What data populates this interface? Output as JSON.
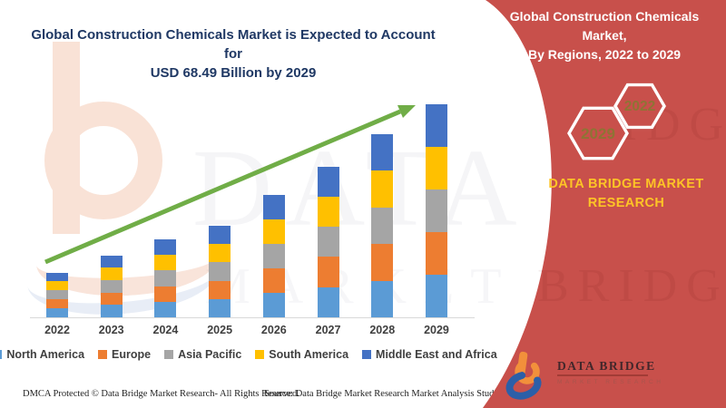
{
  "left_title": {
    "line1": "Global Construction Chemicals Market is Expected to Account for",
    "line2": "USD 68.49 Billion by 2029"
  },
  "chart_data": {
    "type": "bar",
    "stacked": true,
    "title": "Global Construction Chemicals Market is Expected to Account for USD 68.49 Billion by 2029",
    "unit": "USD Billion",
    "categories": [
      "2022",
      "2023",
      "2024",
      "2025",
      "2026",
      "2027",
      "2028",
      "2029"
    ],
    "series": [
      {
        "name": "North America",
        "color": "#5B9BD5",
        "values": [
          2.9,
          4.0,
          5.0,
          5.9,
          7.9,
          9.7,
          11.8,
          13.7
        ]
      },
      {
        "name": "Europe",
        "color": "#ED7D31",
        "values": [
          2.9,
          4.0,
          5.0,
          5.9,
          7.9,
          9.7,
          11.8,
          13.7
        ]
      },
      {
        "name": "Asia Pacific",
        "color": "#A5A5A5",
        "values": [
          2.9,
          4.0,
          5.0,
          5.9,
          7.9,
          9.7,
          11.8,
          13.7
        ]
      },
      {
        "name": "South America",
        "color": "#FFC000",
        "values": [
          2.9,
          4.0,
          5.0,
          5.9,
          7.9,
          9.7,
          11.8,
          13.7
        ]
      },
      {
        "name": "Middle East and Africa",
        "color": "#4472C4",
        "values": [
          2.9,
          4.0,
          5.0,
          5.9,
          7.9,
          9.7,
          11.8,
          13.7
        ]
      }
    ],
    "totals": [
      14.6,
      19.8,
      24.8,
      29.7,
      39.3,
      48.7,
      58.9,
      68.49
    ],
    "ylim": [
      0,
      70
    ],
    "gridlines": false,
    "axis_labels_shown": false,
    "legend_position": "bottom",
    "annotations": [
      "upward green trend arrow from 2022 to 2029"
    ]
  },
  "right_panel": {
    "title_line1": "Global Construction Chemicals Market,",
    "title_line2": "By Regions, 2022 to 2029",
    "hexagons": [
      {
        "label": "2029"
      },
      {
        "label": "2022"
      }
    ],
    "brand_line1": "DATA BRIDGE MARKET",
    "brand_line2": "RESEARCH",
    "panel_red": "#C8504B",
    "brand_yellow": "#FDC426",
    "hexagon_text_color": "#8E7434"
  },
  "logo": {
    "name": "DATA BRIDGE",
    "subtitle": "MARKET RESEARCH"
  },
  "footer": {
    "dmca": "DMCA Protected © Data Bridge Market Research- All Rights Reserved.",
    "source": "Source: Data Bridge Market Research Market Analysis Study 2022"
  },
  "watermarks": {
    "line1": "DATA BRIDGE",
    "line2": "MARKET RESEARCH",
    "red_line1": "RIDGE",
    "red_line2": "BRIDGE"
  },
  "colors": {
    "arrow_green": "#70AD47",
    "title_navy": "#1F3864",
    "axis_label_gray": "#3F3F3F"
  }
}
